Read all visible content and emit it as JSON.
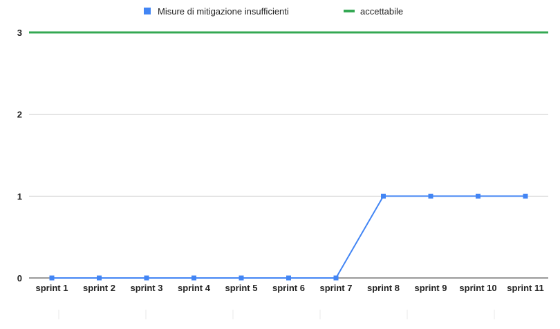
{
  "chart_data": {
    "type": "line",
    "title": "",
    "xlabel": "",
    "ylabel": "",
    "categories": [
      "sprint 1",
      "sprint 2",
      "sprint 3",
      "sprint 4",
      "sprint 5",
      "sprint 6",
      "sprint 7",
      "sprint 8",
      "sprint 9",
      "sprint 10",
      "sprint 11"
    ],
    "ylim": [
      0,
      3
    ],
    "yticks": [
      "0",
      "1",
      "2",
      "3"
    ],
    "grid": true,
    "legend_position": "top",
    "series": [
      {
        "name": "Misure di mitigazione insufficienti",
        "color": "#4285F4",
        "marker": "square",
        "values": [
          0,
          0,
          0,
          0,
          0,
          0,
          0,
          1,
          1,
          1,
          1
        ]
      },
      {
        "name": "accettabile",
        "color": "#34A853",
        "marker": "none",
        "values": [
          3,
          3,
          3,
          3,
          3,
          3,
          3,
          3,
          3,
          3,
          3
        ]
      }
    ]
  }
}
